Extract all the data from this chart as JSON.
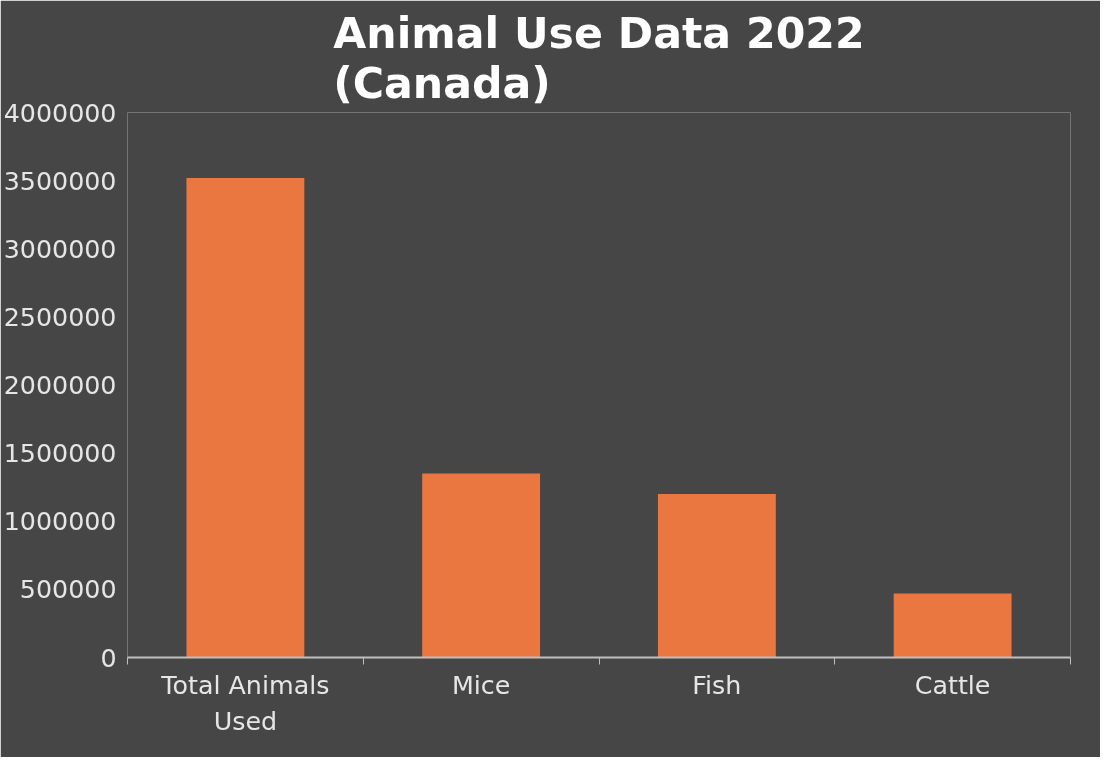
{
  "chart_data": {
    "type": "bar",
    "title": "Animal Use Data 2022 (Canada)",
    "categories": [
      "Total Animals Used",
      "Mice",
      "Fish",
      "Cattle"
    ],
    "values": [
      3520000,
      1350000,
      1200000,
      470000
    ],
    "color": "#e9773f",
    "ylim": [
      0,
      4000000
    ],
    "yticks": [
      0,
      500000,
      1000000,
      1500000,
      2000000,
      2500000,
      3000000,
      3500000,
      4000000
    ],
    "grid": false
  }
}
